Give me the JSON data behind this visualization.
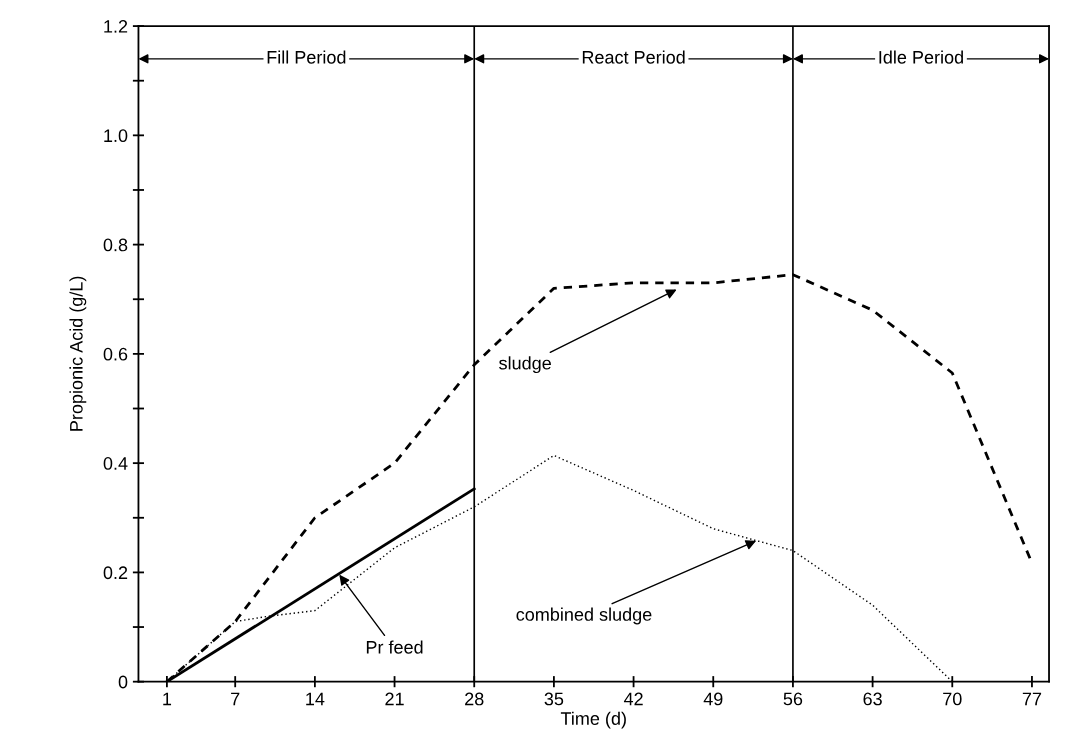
{
  "chart_data": {
    "type": "line",
    "xlabel": "Time (d)",
    "ylabel": "Propionic Acid (g/L)",
    "series": [
      {
        "color": "#000000",
        "line_style": "dashed",
        "x": [
          1,
          7,
          14,
          21,
          28,
          35,
          42,
          45,
          49,
          56,
          63,
          70,
          77
        ],
        "values": [
          0,
          0.11,
          0.3,
          0.4,
          0.58,
          0.72,
          0.73,
          0.73,
          0.73,
          0.745,
          0.68,
          0.565,
          0.217
        ]
      },
      {
        "color": "#000000",
        "line_style": "dotted",
        "x": [
          1,
          7,
          10,
          14,
          21,
          28,
          35,
          42,
          49,
          53,
          56,
          63,
          70
        ],
        "values": [
          0,
          0.11,
          0.12,
          0.13,
          0.245,
          0.32,
          0.414,
          0.35,
          0.28,
          0.257,
          0.24,
          0.14,
          0
        ]
      },
      {
        "color": "#000000",
        "line_style": "solid",
        "x": [
          1,
          28
        ],
        "values": [
          0,
          0.353
        ]
      }
    ],
    "xlim": [
      -1.5,
      78.5
    ],
    "ylim": [
      0,
      1.2
    ],
    "xticks": [
      1,
      7,
      14,
      21,
      28,
      35,
      42,
      49,
      56,
      63,
      70,
      77
    ],
    "yticks": [
      0,
      {
        "value": 0.1,
        "label": null
      },
      0.2,
      {
        "value": 0.3,
        "label": null
      },
      0.4,
      {
        "value": 0.5,
        "label": null
      },
      0.6,
      {
        "value": 0.7,
        "label": null
      },
      0.8,
      {
        "value": 0.9,
        "label": null
      },
      {
        "value": 1,
        "label": "1.0"
      },
      {
        "value": 1.1,
        "label": null
      },
      1.2
    ],
    "ref_lines": [
      {
        "axis": "x",
        "value": 28,
        "color": "#000000"
      },
      {
        "axis": "x",
        "value": 56,
        "color": "#000000"
      }
    ],
    "annotations": [
      "Fill Period",
      "React Period",
      "Idle Period",
      {
        "text": "sludge",
        "x": 46,
        "y": 0.72
      },
      {
        "text": "combined sludge",
        "x": 53,
        "y": 0.26
      },
      {
        "text": "Pr feed",
        "x": 16,
        "y": 0.2
      }
    ],
    "grid": false,
    "legend": false,
    "marker": "none"
  }
}
